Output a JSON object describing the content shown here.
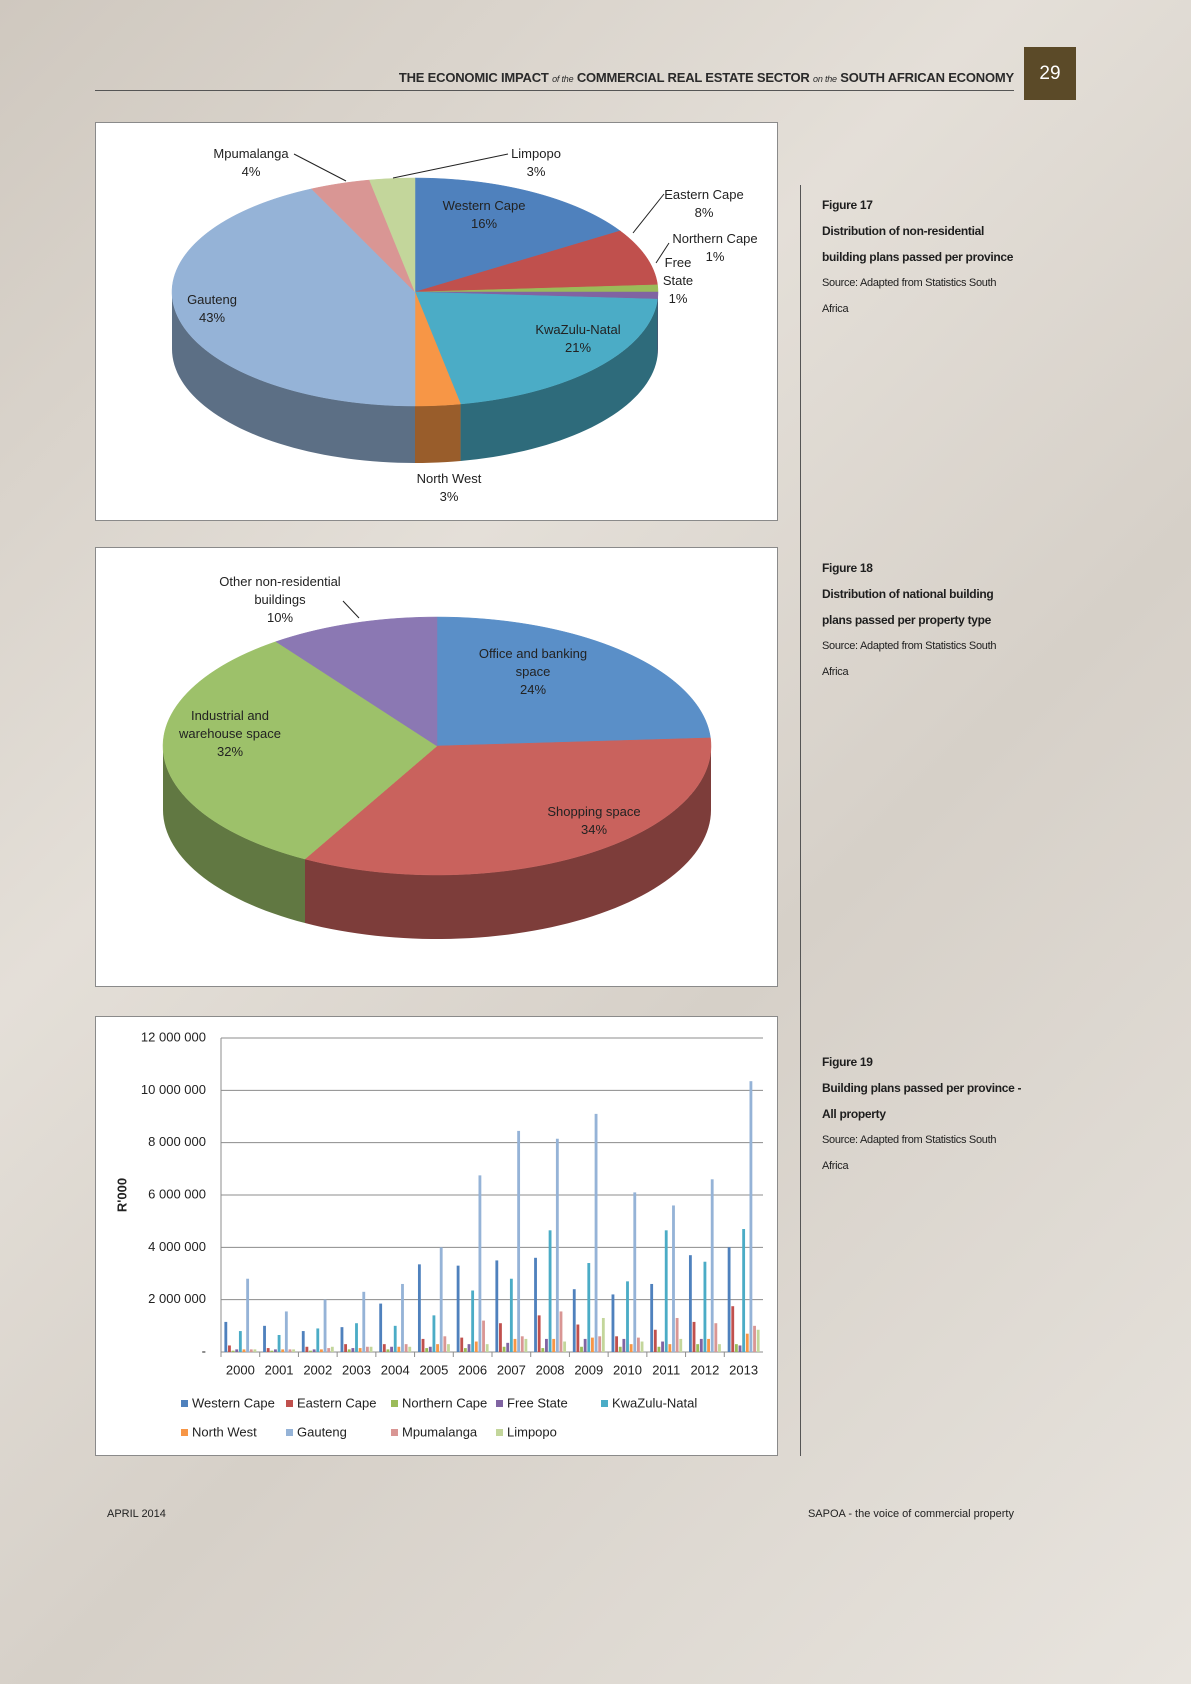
{
  "header": {
    "parts": [
      "THE ECONOMIC IMPACT",
      "of the",
      "COMMERCIAL REAL ESTATE SECTOR",
      "on the",
      "SOUTH AFRICAN ECONOMY"
    ],
    "page_number": "29"
  },
  "captions": [
    {
      "figure": "Figure 17",
      "title": "Distribution of non-residential building plans passed per province",
      "source": "Source: Adapted from Statistics South Africa"
    },
    {
      "figure": "Figure 18",
      "title": "Distribution of national building plans passed per property type",
      "source": "Source: Adapted from Statistics South Africa"
    },
    {
      "figure": "Figure 19",
      "title": "Building plans passed per province - All property",
      "source": "Source: Adapted from Statistics South Africa"
    }
  ],
  "chart_data": [
    {
      "type": "pie3d",
      "categories": [
        "Western Cape",
        "Eastern Cape",
        "Northern Cape",
        "Free State",
        "KwaZulu-Natal",
        "North West",
        "Gauteng",
        "Mpumalanga",
        "Limpopo"
      ],
      "values": [
        16,
        8,
        1,
        1,
        21,
        3,
        43,
        4,
        3
      ],
      "value_labels": [
        "16%",
        "8%",
        "1%",
        "1%",
        "21%",
        "3%",
        "43%",
        "4%",
        "3%"
      ],
      "colors": [
        "#4f81bd",
        "#c0504d",
        "#9bbb59",
        "#8064a2",
        "#4bacc6",
        "#f79646",
        "#95b3d7",
        "#d99694",
        "#c3d69b"
      ]
    },
    {
      "type": "pie3d",
      "categories": [
        "Office and banking space",
        "Shopping space",
        "Industrial and warehouse space",
        "Other non-residential buildings"
      ],
      "values": [
        24,
        34,
        32,
        10
      ],
      "value_labels": [
        "24%",
        "34%",
        "32%",
        "10%"
      ],
      "colors": [
        "#5a8fc8",
        "#c9625d",
        "#9dc16a",
        "#8b78b3"
      ]
    },
    {
      "type": "bar",
      "y_label": "R'000",
      "categories": [
        "2000",
        "2001",
        "2002",
        "2003",
        "2004",
        "2005",
        "2006",
        "2007",
        "2008",
        "2009",
        "2010",
        "2011",
        "2012",
        "2013"
      ],
      "ylim": [
        0,
        12000000
      ],
      "yticks": [
        {
          "value": 0,
          "label": "-"
        },
        {
          "value": 2000000,
          "label": "2 000 000"
        },
        {
          "value": 4000000,
          "label": "4 000 000"
        },
        {
          "value": 6000000,
          "label": "6 000 000"
        },
        {
          "value": 8000000,
          "label": "8 000 000"
        },
        {
          "value": 10000000,
          "label": "10 000 000"
        },
        {
          "value": 12000000,
          "label": "12 000 000"
        }
      ],
      "grid": true,
      "legend": "bottom",
      "series": [
        {
          "name": "Western Cape",
          "color": "#4f81bd",
          "values": [
            1150000,
            1000000,
            800000,
            950000,
            1850000,
            3350000,
            3300000,
            3500000,
            3600000,
            2400000,
            2200000,
            2600000,
            3700000,
            4000000
          ]
        },
        {
          "name": "Eastern Cape",
          "color": "#c0504d",
          "values": [
            250000,
            150000,
            200000,
            300000,
            300000,
            500000,
            550000,
            1100000,
            1400000,
            1050000,
            600000,
            850000,
            1150000,
            1750000
          ]
        },
        {
          "name": "Northern Cape",
          "color": "#9bbb59",
          "values": [
            50000,
            50000,
            50000,
            100000,
            100000,
            150000,
            150000,
            200000,
            150000,
            200000,
            200000,
            200000,
            300000,
            300000
          ]
        },
        {
          "name": "Free State",
          "color": "#8064a2",
          "values": [
            100000,
            100000,
            100000,
            150000,
            200000,
            200000,
            300000,
            350000,
            500000,
            500000,
            500000,
            400000,
            500000,
            250000
          ]
        },
        {
          "name": "KwaZulu-Natal",
          "color": "#4bacc6",
          "values": [
            800000,
            650000,
            900000,
            1100000,
            1000000,
            1400000,
            2350000,
            2800000,
            4650000,
            3400000,
            2700000,
            4650000,
            3450000,
            4700000
          ]
        },
        {
          "name": "North West",
          "color": "#f79646",
          "values": [
            100000,
            100000,
            100000,
            150000,
            200000,
            300000,
            400000,
            500000,
            500000,
            550000,
            300000,
            300000,
            500000,
            700000
          ]
        },
        {
          "name": "Gauteng",
          "color": "#95b3d7",
          "values": [
            2800000,
            1550000,
            2000000,
            2300000,
            2600000,
            4000000,
            6750000,
            8450000,
            8150000,
            9100000,
            6100000,
            5600000,
            6600000,
            10350000
          ]
        },
        {
          "name": "Mpumalanga",
          "color": "#d99694",
          "values": [
            100000,
            100000,
            150000,
            200000,
            300000,
            600000,
            1200000,
            600000,
            1550000,
            600000,
            550000,
            1300000,
            1100000,
            1000000
          ]
        },
        {
          "name": "Limpopo",
          "color": "#c3d69b",
          "values": [
            100000,
            100000,
            200000,
            200000,
            200000,
            300000,
            300000,
            500000,
            400000,
            1300000,
            400000,
            500000,
            300000,
            850000
          ]
        }
      ]
    }
  ],
  "footer": {
    "left": "APRIL 2014",
    "right": "SAPOA - the voice of commercial property"
  }
}
